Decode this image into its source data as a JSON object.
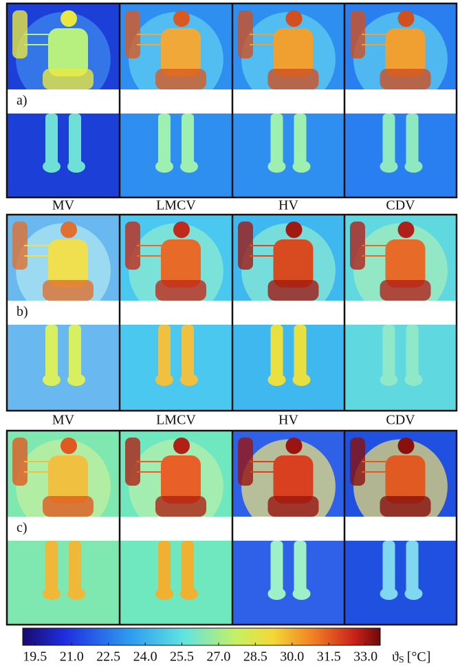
{
  "rows": [
    {
      "label": "a)",
      "columns": [
        "MV",
        "LMCV",
        "HV",
        "CDV"
      ]
    },
    {
      "label": "b)",
      "columns": [
        "MV",
        "LMCV",
        "HV",
        "CDV"
      ]
    },
    {
      "label": "c)"
    }
  ],
  "colorbar": {
    "range": [
      19,
      33.6
    ],
    "ticks": [
      19.5,
      {
        "value": 21,
        "label": "21.0"
      },
      22.5,
      {
        "value": 24,
        "label": "24.0"
      },
      25.5,
      {
        "value": 27,
        "label": "27.0"
      },
      28.5,
      {
        "value": 30,
        "label": "30.0"
      },
      31.5,
      {
        "value": 33,
        "label": "33.0"
      }
    ],
    "symbol": "ϑ",
    "subscript": "S",
    "unit": "[°C]"
  }
}
